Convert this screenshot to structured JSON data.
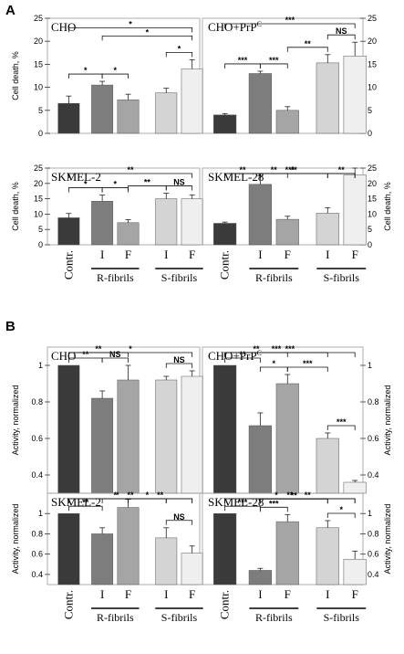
{
  "panels": [
    {
      "letter": "A",
      "charts": [
        0,
        1,
        2,
        3
      ]
    },
    {
      "letter": "B",
      "charts": [
        4,
        5,
        6,
        7
      ]
    }
  ],
  "category_labels": [
    "Contr.",
    "I",
    "F",
    "I",
    "F"
  ],
  "group_labels": [
    "R-fibrils",
    "S-fibrils"
  ],
  "colors": {
    "contr": "#3a3a3a",
    "r_i": "#7d7d7d",
    "r_f": "#a5a5a5",
    "s_i": "#d4d4d4",
    "s_f": "#efefef"
  },
  "chart_data": [
    {
      "type": "bar",
      "title": "CHO",
      "ylabel": "Cell death, %",
      "ylim": [
        0,
        25
      ],
      "yticks": [
        0,
        5,
        10,
        15,
        20,
        25
      ],
      "categories": [
        "Contr.",
        "I",
        "F",
        "I",
        "F"
      ],
      "values": [
        6.5,
        10.5,
        7.3,
        8.8,
        14.0
      ],
      "errors": [
        1.6,
        0.8,
        1.2,
        1.0,
        2.0
      ],
      "significance": [
        {
          "from": 0,
          "to": 1,
          "label": "*"
        },
        {
          "from": 1,
          "to": 2,
          "label": "*"
        },
        {
          "from": 3,
          "to": 4,
          "label": "*"
        },
        {
          "from": 1,
          "to": 4,
          "label": "*"
        },
        {
          "from": 0,
          "to": 4,
          "label": "*"
        }
      ]
    },
    {
      "type": "bar",
      "title": "CHO+PrP",
      "title_sup": "C",
      "ylabel": "",
      "ylim": [
        0,
        25
      ],
      "yticks": [
        0,
        5,
        10,
        15,
        20,
        25
      ],
      "categories": [
        "Contr.",
        "I",
        "F",
        "I",
        "F"
      ],
      "values": [
        4.0,
        13.0,
        5.0,
        15.3,
        16.8
      ],
      "errors": [
        0.3,
        0.5,
        0.8,
        1.8,
        3.0
      ],
      "significance": [
        {
          "from": 0,
          "to": 1,
          "label": "***"
        },
        {
          "from": 1,
          "to": 2,
          "label": "***"
        },
        {
          "from": 3,
          "to": 4,
          "label": "NS"
        },
        {
          "from": 2,
          "to": 3,
          "label": "**"
        },
        {
          "from": 0,
          "to": 4,
          "label": "***"
        }
      ]
    },
    {
      "type": "bar",
      "title": "SKMEL-2",
      "ylabel": "Cell death, %",
      "ylim": [
        0,
        25
      ],
      "yticks": [
        0,
        5,
        10,
        15,
        20,
        25
      ],
      "categories": [
        "Contr.",
        "I",
        "F",
        "I",
        "F"
      ],
      "values": [
        8.8,
        14.2,
        7.2,
        15.0,
        15.0
      ],
      "errors": [
        1.4,
        2.0,
        1.0,
        1.8,
        1.2
      ],
      "significance": [
        {
          "from": 0,
          "to": 1,
          "label": "*"
        },
        {
          "from": 1,
          "to": 2,
          "label": "*"
        },
        {
          "from": 3,
          "to": 4,
          "label": "NS"
        },
        {
          "from": 2,
          "to": 3,
          "label": "**"
        },
        {
          "from": 0,
          "to": 4,
          "label": "**"
        }
      ]
    },
    {
      "type": "bar",
      "title": "SKMEL-28",
      "ylabel": "Cell death, %",
      "ylim": [
        0,
        25
      ],
      "yticks": [
        0,
        5,
        10,
        15,
        20,
        25
      ],
      "categories": [
        "Contr.",
        "I",
        "F",
        "I",
        "F"
      ],
      "values": [
        7.0,
        19.7,
        8.3,
        10.3,
        22.8
      ],
      "errors": [
        0.4,
        2.8,
        1.0,
        1.8,
        2.2
      ],
      "significance": [
        {
          "from": 0,
          "to": 1,
          "label": "**"
        },
        {
          "from": 1,
          "to": 2,
          "label": "**"
        },
        {
          "from": 3,
          "to": 4,
          "label": "**"
        },
        {
          "from": 1,
          "to": 3,
          "label": "**"
        },
        {
          "from": 0,
          "to": 4,
          "label": "***"
        }
      ]
    },
    {
      "type": "bar",
      "title": "CHO",
      "ylabel": "Activity, normalized",
      "ylim": [
        0.3,
        1.1
      ],
      "yticks": [
        0.4,
        0.6,
        0.8,
        1.0
      ],
      "categories": [
        "Contr.",
        "I",
        "F",
        "I",
        "F"
      ],
      "values": [
        1.0,
        0.82,
        0.92,
        0.92,
        0.94
      ],
      "errors": [
        0.0,
        0.04,
        0.08,
        0.02,
        0.03
      ],
      "significance": [
        {
          "from": 0,
          "to": 1,
          "label": "**"
        },
        {
          "from": 1,
          "to": 2,
          "label": "NS"
        },
        {
          "from": 3,
          "to": 4,
          "label": "NS"
        },
        {
          "from": 0,
          "to": 2,
          "label": "**"
        },
        {
          "from": 0,
          "to": 4,
          "label": "*"
        }
      ]
    },
    {
      "type": "bar",
      "title": "CHO+PrP",
      "title_sup": "C",
      "ylabel": "Activity, normalized",
      "ylim": [
        0.3,
        1.1
      ],
      "yticks": [
        0.4,
        0.6,
        0.8,
        1.0
      ],
      "categories": [
        "Contr.",
        "I",
        "F",
        "I",
        "F"
      ],
      "values": [
        1.0,
        0.67,
        0.9,
        0.6,
        0.36
      ],
      "errors": [
        0.0,
        0.07,
        0.05,
        0.03,
        0.01
      ],
      "significance": [
        {
          "from": 0,
          "to": 1,
          "label": "**"
        },
        {
          "from": 1,
          "to": 2,
          "label": "*"
        },
        {
          "from": 3,
          "to": 4,
          "label": "***"
        },
        {
          "from": 2,
          "to": 3,
          "label": "***"
        },
        {
          "from": 0,
          "to": 2,
          "label": "**"
        },
        {
          "from": 0,
          "to": 3,
          "label": "***"
        },
        {
          "from": 0,
          "to": 4,
          "label": "***"
        }
      ]
    },
    {
      "type": "bar",
      "title": "SKMEL-2",
      "ylabel": "Activity, normalized",
      "ylim": [
        0.3,
        1.2
      ],
      "yticks": [
        0.4,
        0.6,
        0.8,
        1.0
      ],
      "categories": [
        "Contr.",
        "I",
        "F",
        "I",
        "F"
      ],
      "values": [
        1.0,
        0.8,
        1.06,
        0.76,
        0.61
      ],
      "errors": [
        0.0,
        0.06,
        0.08,
        0.1,
        0.07
      ],
      "significance": [
        {
          "from": 0,
          "to": 1,
          "label": "**"
        },
        {
          "from": 1,
          "to": 2,
          "label": "*"
        },
        {
          "from": 3,
          "to": 4,
          "label": "NS"
        },
        {
          "from": 2,
          "to": 3,
          "label": "*"
        },
        {
          "from": 2,
          "to": 4,
          "label": "**"
        },
        {
          "from": 0,
          "to": 3,
          "label": "*"
        },
        {
          "from": 0,
          "to": 4,
          "label": "**"
        }
      ]
    },
    {
      "type": "bar",
      "title": "SKMEL-28",
      "ylabel": "Activity, normalized",
      "ylim": [
        0.3,
        1.2
      ],
      "yticks": [
        0.4,
        0.6,
        0.8,
        1.0
      ],
      "categories": [
        "Contr.",
        "I",
        "F",
        "I",
        "F"
      ],
      "values": [
        1.0,
        0.44,
        0.92,
        0.86,
        0.55
      ],
      "errors": [
        0.0,
        0.02,
        0.07,
        0.07,
        0.08
      ],
      "significance": [
        {
          "from": 0,
          "to": 1,
          "label": "***"
        },
        {
          "from": 1,
          "to": 2,
          "label": "***"
        },
        {
          "from": 3,
          "to": 4,
          "label": "*"
        },
        {
          "from": 1,
          "to": 3,
          "label": "**"
        },
        {
          "from": 1,
          "to": 4,
          "label": "**"
        },
        {
          "from": 0,
          "to": 3,
          "label": "*"
        },
        {
          "from": 0,
          "to": 4,
          "label": "**"
        }
      ]
    }
  ]
}
